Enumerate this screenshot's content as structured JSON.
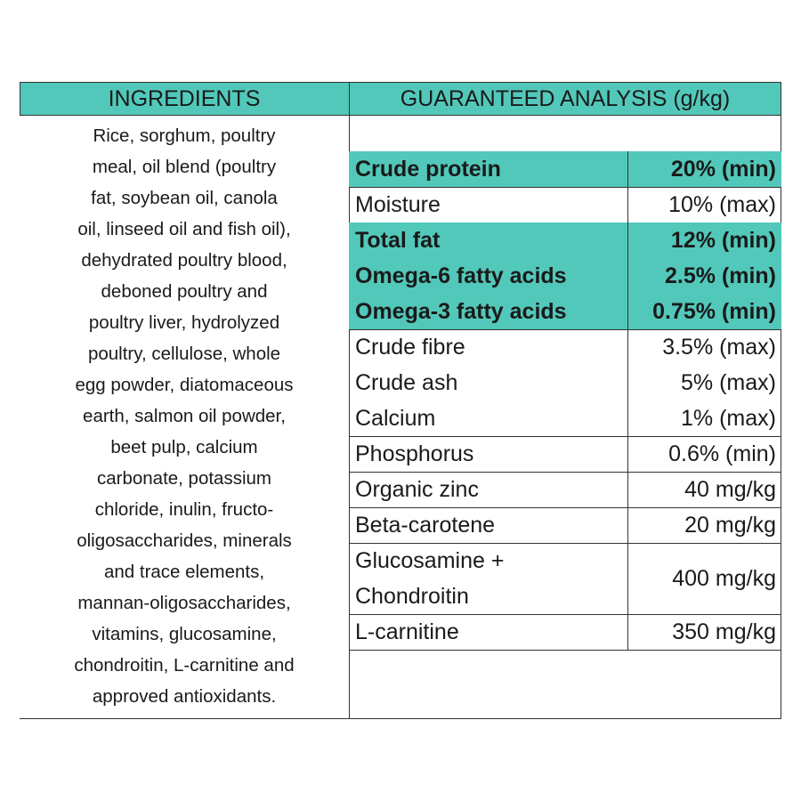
{
  "header": {
    "ingredients": "INGREDIENTS",
    "analysis": "GUARANTEED ANALYSIS (g/kg)"
  },
  "ingredients": {
    "lines": [
      "Rice, sorghum, poultry",
      "meal, oil blend (poultry",
      "fat, soybean oil, canola",
      "oil, linseed oil and fish oil),",
      "dehydrated poultry blood,",
      "deboned poultry and",
      "poultry liver, hydrolyzed",
      "poultry, cellulose, whole",
      "egg powder, diatomaceous",
      "earth, salmon oil powder,",
      "beet pulp, calcium",
      "carbonate, potassium",
      "chloride, inulin, fructo-",
      "oligosaccharides, minerals",
      "and trace elements,",
      "mannan-oligosaccharides,",
      "vitamins, glucosamine,",
      "chondroitin, L-carnitine and",
      "approved antioxidants."
    ]
  },
  "analysis": {
    "groups": [
      {
        "highlight": true,
        "rows": [
          {
            "name": [
              "Crude protein"
            ],
            "value": "20% (min)"
          }
        ]
      },
      {
        "highlight": false,
        "rows": [
          {
            "name": [
              "Moisture"
            ],
            "value": "10% (max)"
          }
        ]
      },
      {
        "highlight": true,
        "rows": [
          {
            "name": [
              "Total fat"
            ],
            "value": "12% (min)"
          },
          {
            "name": [
              "Omega-6 fatty acids"
            ],
            "value": "2.5% (min)"
          },
          {
            "name": [
              "Omega-3 fatty acids"
            ],
            "value": "0.75% (min)"
          }
        ]
      },
      {
        "highlight": false,
        "rows": [
          {
            "name": [
              "Crude fibre"
            ],
            "value": "3.5% (max)"
          },
          {
            "name": [
              "Crude ash"
            ],
            "value": "5% (max)"
          },
          {
            "name": [
              "Calcium"
            ],
            "value": "1% (max)"
          }
        ]
      },
      {
        "highlight": false,
        "rows": [
          {
            "name": [
              "Phosphorus"
            ],
            "value": "0.6% (min)"
          }
        ]
      },
      {
        "highlight": false,
        "rows": [
          {
            "name": [
              "Organic zinc"
            ],
            "value": "40 mg/kg"
          }
        ]
      },
      {
        "highlight": false,
        "rows": [
          {
            "name": [
              "Beta-carotene"
            ],
            "value": "20 mg/kg"
          }
        ]
      },
      {
        "highlight": false,
        "rows": [
          {
            "name": [
              "Glucosamine +",
              "Chondroitin"
            ],
            "value": "400 mg/kg"
          }
        ]
      },
      {
        "highlight": false,
        "rows": [
          {
            "name": [
              "L-carnitine"
            ],
            "value": "350 mg/kg"
          }
        ]
      }
    ]
  }
}
